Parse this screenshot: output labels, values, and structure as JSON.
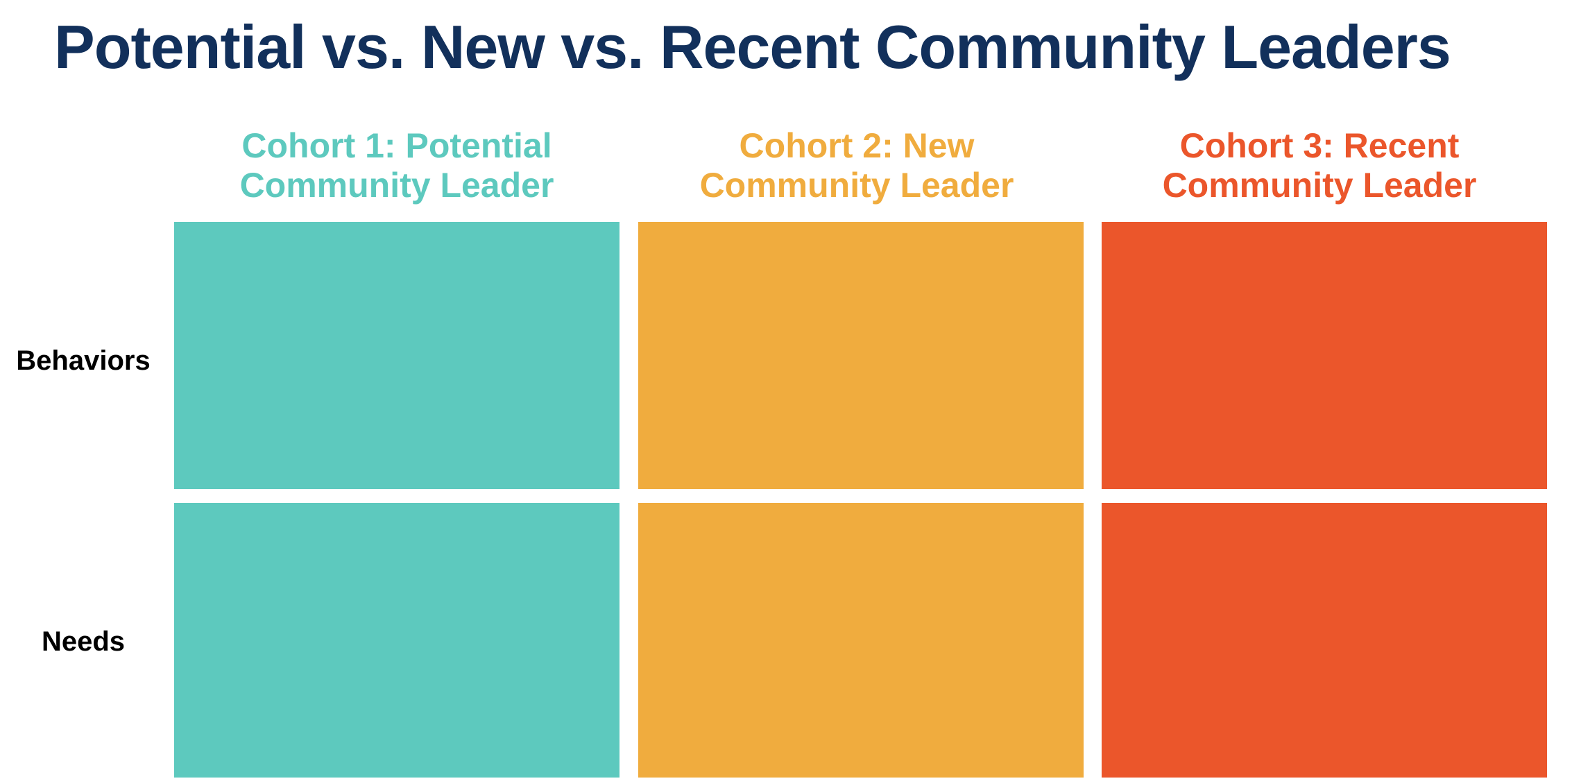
{
  "title": "Potential vs. New vs. Recent Community Leaders",
  "colors": {
    "title": "#12305b",
    "cohort_1": "#5dc9be",
    "cohort_2": "#f0ac3e",
    "cohort_3": "#eb562b",
    "row_label": "#000000"
  },
  "columns": [
    {
      "line1": "Cohort 1: Potential",
      "line2": "Community Leader",
      "color": "#5dc9be"
    },
    {
      "line1": "Cohort 2: New",
      "line2": "Community Leader",
      "color": "#f0ac3e"
    },
    {
      "line1": "Cohort 3: Recent",
      "line2": "Community Leader",
      "color": "#eb562b"
    }
  ],
  "rows": [
    {
      "label": "Behaviors"
    },
    {
      "label": "Needs"
    }
  ]
}
